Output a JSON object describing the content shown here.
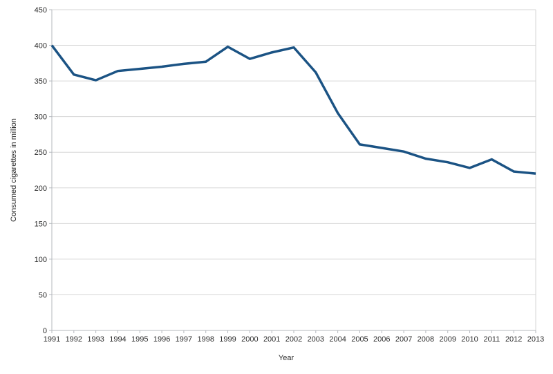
{
  "chart_data": {
    "type": "line",
    "title": "",
    "xlabel": "Year",
    "ylabel": "Consumed cigarettes in million",
    "categories": [
      1991,
      1992,
      1993,
      1994,
      1995,
      1996,
      1997,
      1998,
      1999,
      2000,
      2001,
      2002,
      2003,
      2004,
      2005,
      2006,
      2007,
      2008,
      2009,
      2010,
      2011,
      2012,
      2013
    ],
    "series": [
      {
        "values": [
          400,
          359,
          351,
          364,
          367,
          370,
          374,
          377,
          398,
          381,
          390,
          397,
          362,
          305,
          261,
          256,
          251,
          241,
          236,
          228,
          240,
          223,
          220
        ],
        "color": "#1b5384"
      }
    ],
    "ylim": [
      0,
      450
    ],
    "ytick_step": 50,
    "grid": "horizontal",
    "legend": "none",
    "colors": {
      "line": "#1b5384",
      "gridline": "#d6d6d6",
      "axis": "#b4b8be",
      "text": "#2b2b2b",
      "background": "#ffffff"
    }
  }
}
